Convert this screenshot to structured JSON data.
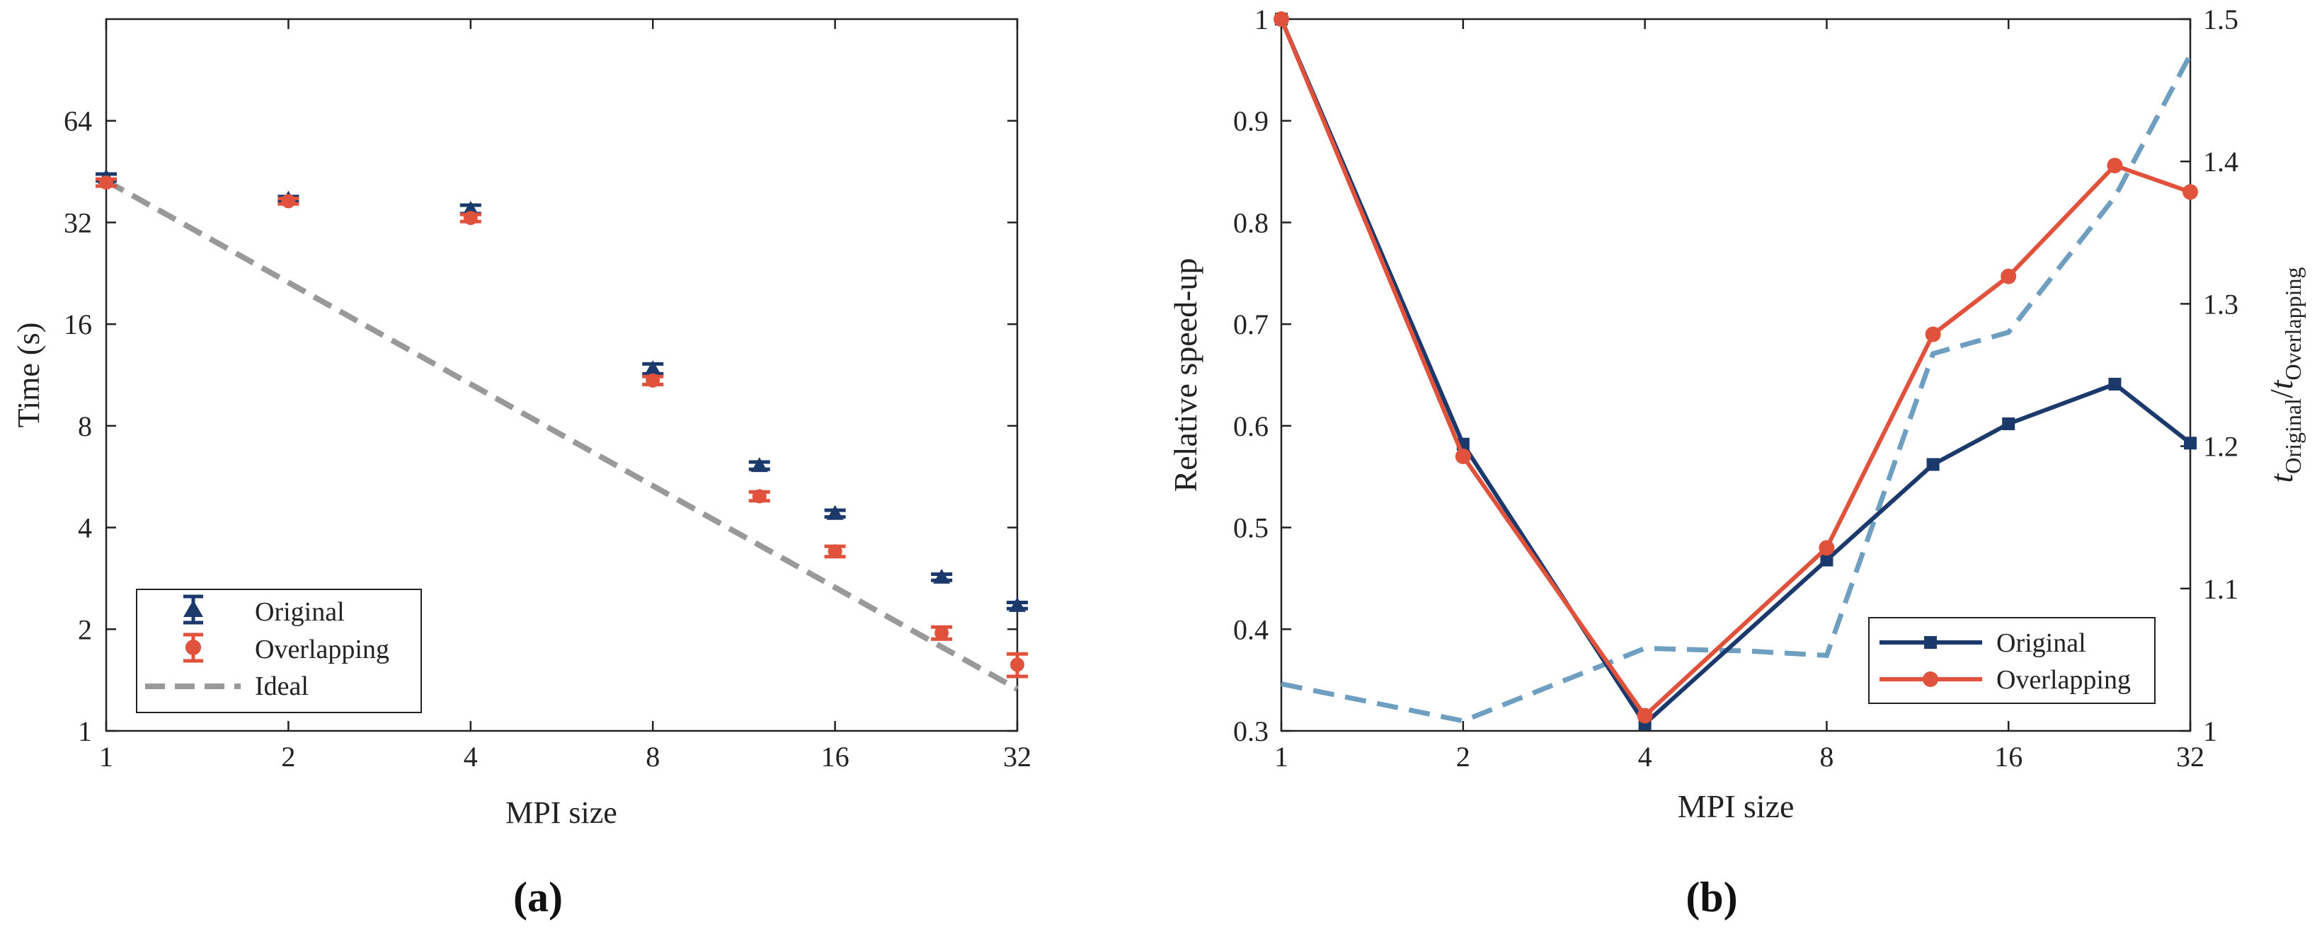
{
  "panels": {
    "a": "(a)",
    "b": "(b)"
  },
  "colors": {
    "original": "#1b3a6b",
    "overlapping": "#e0523c",
    "ideal": "#999999",
    "ratio": "#6e9fc0",
    "axis": "#222222"
  },
  "chart_data": [
    {
      "type": "scatter",
      "panel": "(a)",
      "x_scale": "log2",
      "y_scale": "log2",
      "xlabel": "MPI size",
      "ylabel": "Time (s)",
      "xlim": [
        1,
        32
      ],
      "ylim": [
        1,
        128
      ],
      "xticks": [
        1,
        2,
        4,
        8,
        16,
        32
      ],
      "xtick_labels": [
        "1",
        "2",
        "4",
        "8",
        "16",
        "32"
      ],
      "yticks": [
        1,
        2,
        4,
        8,
        16,
        32,
        64
      ],
      "ytick_labels": [
        "1",
        "2",
        "4",
        "8",
        "16",
        "32",
        "64"
      ],
      "legend": [
        "Original",
        "Overlapping",
        "Ideal"
      ],
      "legend_position": "bottom-left",
      "series": [
        {
          "name": "Original",
          "marker": "triangle",
          "errorbar": true,
          "x": [
            1,
            2,
            4,
            8,
            12,
            16,
            24,
            32
          ],
          "y": [
            43.5,
            37.5,
            35.0,
            11.8,
            6.1,
            4.4,
            2.85,
            2.35
          ],
          "err": [
            1.0,
            0.7,
            1.0,
            0.4,
            0.15,
            0.1,
            0.06,
            0.05
          ]
        },
        {
          "name": "Overlapping",
          "marker": "circle",
          "errorbar": true,
          "x": [
            1,
            2,
            4,
            8,
            12,
            16,
            24,
            32
          ],
          "y": [
            42.0,
            37.0,
            33.0,
            10.9,
            4.95,
            3.4,
            1.95,
            1.57
          ],
          "err": [
            1.0,
            0.7,
            0.8,
            0.3,
            0.15,
            0.12,
            0.08,
            0.12
          ]
        },
        {
          "name": "Ideal",
          "marker": "none",
          "style": "dashed",
          "x": [
            1,
            32
          ],
          "y": [
            42.5,
            1.33
          ]
        }
      ]
    },
    {
      "type": "line",
      "panel": "(b)",
      "x_scale": "log2",
      "xlabel": "MPI size",
      "ylabel": "Relative speed-up",
      "y2label": "tOriginal/tOverlapping",
      "y2label_parts": {
        "t1": "t",
        "sub1": "Original",
        "slash": "/",
        "t2": "t",
        "sub2": "Overlapping"
      },
      "xlim": [
        1,
        32
      ],
      "ylim": [
        0.3,
        1
      ],
      "y2lim": [
        1,
        1.5
      ],
      "xticks": [
        1,
        2,
        4,
        8,
        16,
        32
      ],
      "xtick_labels": [
        "1",
        "2",
        "4",
        "8",
        "16",
        "32"
      ],
      "yticks": [
        0.3,
        0.4,
        0.5,
        0.6,
        0.7,
        0.8,
        0.9,
        1
      ],
      "ytick_labels": [
        "0.3",
        "0.4",
        "0.5",
        "0.6",
        "0.7",
        "0.8",
        "0.9",
        "1"
      ],
      "y2ticks": [
        1,
        1.1,
        1.2,
        1.3,
        1.4,
        1.5
      ],
      "y2tick_labels": [
        "1",
        "1.1",
        "1.2",
        "1.3",
        "1.4",
        "1.5"
      ],
      "legend": [
        "Original",
        "Overlapping"
      ],
      "legend_position": "bottom-right",
      "series": [
        {
          "name": "Original",
          "marker": "square",
          "axis": "left",
          "x": [
            1,
            2,
            4,
            8,
            12,
            16,
            24,
            32
          ],
          "y": [
            1.0,
            0.582,
            0.307,
            0.468,
            0.562,
            0.602,
            0.641,
            0.583
          ]
        },
        {
          "name": "Overlapping",
          "marker": "circle",
          "axis": "left",
          "x": [
            1,
            2,
            4,
            8,
            12,
            16,
            24,
            32
          ],
          "y": [
            1.0,
            0.57,
            0.315,
            0.48,
            0.69,
            0.747,
            0.856,
            0.83
          ]
        },
        {
          "name": "tOriginal/tOverlapping",
          "marker": "none",
          "axis": "right",
          "style": "dashed",
          "x": [
            1,
            2,
            4,
            6,
            8,
            12,
            16,
            24,
            32
          ],
          "y": [
            1.033,
            1.007,
            1.058,
            1.056,
            1.053,
            1.265,
            1.28,
            1.375,
            1.475
          ]
        }
      ]
    }
  ]
}
